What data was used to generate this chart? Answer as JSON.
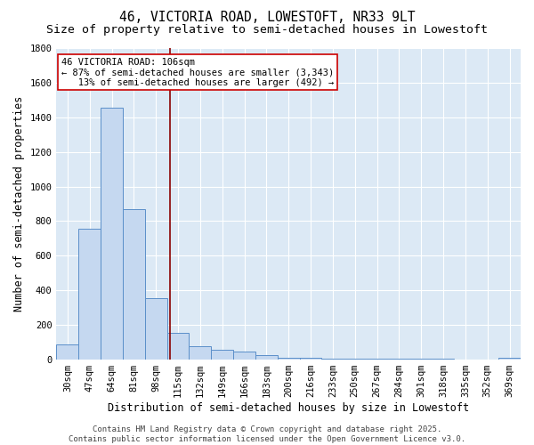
{
  "title_line1": "46, VICTORIA ROAD, LOWESTOFT, NR33 9LT",
  "title_line2": "Size of property relative to semi-detached houses in Lowestoft",
  "xlabel": "Distribution of semi-detached houses by size in Lowestoft",
  "ylabel": "Number of semi-detached properties",
  "categories": [
    "30sqm",
    "47sqm",
    "64sqm",
    "81sqm",
    "98sqm",
    "115sqm",
    "132sqm",
    "149sqm",
    "166sqm",
    "183sqm",
    "200sqm",
    "216sqm",
    "233sqm",
    "250sqm",
    "267sqm",
    "284sqm",
    "301sqm",
    "318sqm",
    "335sqm",
    "352sqm",
    "369sqm"
  ],
  "values": [
    90,
    755,
    1455,
    870,
    355,
    155,
    80,
    55,
    45,
    25,
    12,
    10,
    8,
    6,
    5,
    4,
    3,
    3,
    2,
    2,
    10
  ],
  "bar_color": "#c5d8f0",
  "bar_edge_color": "#5b8fc9",
  "vline_color": "#8b0000",
  "annotation_text": "46 VICTORIA ROAD: 106sqm\n← 87% of semi-detached houses are smaller (3,343)\n   13% of semi-detached houses are larger (492) →",
  "annotation_box_color": "#ffffff",
  "annotation_box_edge": "#cc0000",
  "ylim": [
    0,
    1800
  ],
  "yticks": [
    0,
    200,
    400,
    600,
    800,
    1000,
    1200,
    1400,
    1600,
    1800
  ],
  "background_color": "#dce9f5",
  "grid_color": "#ffffff",
  "footer_line1": "Contains HM Land Registry data © Crown copyright and database right 2025.",
  "footer_line2": "Contains public sector information licensed under the Open Government Licence v3.0.",
  "title_fontsize": 10.5,
  "subtitle_fontsize": 9.5,
  "axis_label_fontsize": 8.5,
  "tick_fontsize": 7.5,
  "annotation_fontsize": 7.5,
  "footer_fontsize": 6.5
}
